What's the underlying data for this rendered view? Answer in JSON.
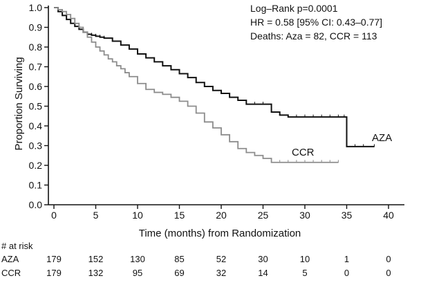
{
  "chart_data": {
    "type": "line",
    "xlabel": "Time (months) from Randomization",
    "ylabel": "Proportion Surviving",
    "xlim": [
      0,
      40
    ],
    "ylim": [
      0,
      1.0
    ],
    "x_ticks": [
      0,
      5,
      10,
      15,
      20,
      25,
      30,
      35,
      40
    ],
    "y_ticks": [
      "0.0",
      "0.1",
      "0.2",
      "0.3",
      "0.4",
      "0.5",
      "0.6",
      "0.7",
      "0.8",
      "0.9",
      "1.0"
    ],
    "grid": false,
    "annotations": [
      "Log–Rank  p=0.0001",
      "HR = 0.58 [95% CI: 0.43–0.77]",
      "Deaths: Aza = 82, CCR = 113"
    ],
    "series": [
      {
        "name": "AZA",
        "color": "#111111",
        "x": [
          0,
          0.5,
          1,
          1.5,
          2,
          2.5,
          3,
          3.5,
          4,
          4.5,
          5,
          5.5,
          6,
          7,
          8,
          9,
          10,
          11,
          12,
          13,
          14,
          15,
          16,
          17,
          18,
          19,
          20,
          21,
          22,
          23,
          24,
          25,
          26,
          27,
          28,
          29,
          30,
          31,
          32,
          33,
          34,
          34.7,
          35,
          36,
          37,
          38.3
        ],
        "y": [
          1.0,
          0.98,
          0.96,
          0.94,
          0.92,
          0.905,
          0.89,
          0.875,
          0.865,
          0.86,
          0.855,
          0.85,
          0.845,
          0.83,
          0.81,
          0.79,
          0.765,
          0.745,
          0.725,
          0.705,
          0.685,
          0.665,
          0.645,
          0.62,
          0.6,
          0.58,
          0.565,
          0.545,
          0.53,
          0.51,
          0.51,
          0.51,
          0.47,
          0.455,
          0.445,
          0.445,
          0.445,
          0.445,
          0.445,
          0.445,
          0.445,
          0.445,
          0.295,
          0.295,
          0.295,
          0.295
        ]
      },
      {
        "name": "CCR",
        "color": "#8c8c8c",
        "x": [
          0,
          0.5,
          1,
          1.5,
          2,
          2.5,
          3,
          3.5,
          4,
          4.5,
          5,
          5.5,
          6,
          6.5,
          7,
          7.5,
          8,
          8.5,
          9,
          10,
          11,
          12,
          13,
          14,
          15,
          16,
          17,
          18,
          19,
          20,
          21,
          22,
          23,
          24,
          25,
          26,
          27,
          28,
          29,
          30,
          31,
          32,
          33,
          34
        ],
        "y": [
          1.0,
          0.99,
          0.98,
          0.965,
          0.945,
          0.92,
          0.9,
          0.875,
          0.85,
          0.825,
          0.8,
          0.78,
          0.76,
          0.74,
          0.725,
          0.705,
          0.69,
          0.67,
          0.65,
          0.615,
          0.585,
          0.57,
          0.56,
          0.545,
          0.525,
          0.5,
          0.465,
          0.42,
          0.39,
          0.355,
          0.32,
          0.285,
          0.265,
          0.25,
          0.235,
          0.215,
          0.215,
          0.215,
          0.215,
          0.215,
          0.215,
          0.215,
          0.215,
          0.215
        ]
      }
    ],
    "at_risk": {
      "heading": "# at risk",
      "times": [
        0,
        5,
        10,
        15,
        20,
        25,
        30,
        35,
        40
      ],
      "rows": [
        {
          "label": "AZA",
          "counts": [
            "179",
            "152",
            "130",
            "85",
            "52",
            "30",
            "10",
            "1",
            "0"
          ]
        },
        {
          "label": "CCR",
          "counts": [
            "179",
            "132",
            "95",
            "69",
            "32",
            "14",
            "5",
            "0",
            "0"
          ]
        }
      ]
    }
  }
}
